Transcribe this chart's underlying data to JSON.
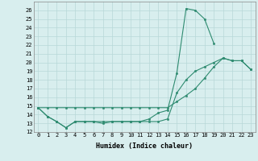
{
  "xlabel": "Humidex (Indice chaleur)",
  "x": [
    0,
    1,
    2,
    3,
    4,
    5,
    6,
    7,
    8,
    9,
    10,
    11,
    12,
    13,
    14,
    15,
    16,
    17,
    18,
    19,
    20,
    21,
    22,
    23
  ],
  "line1_y": [
    14.8,
    13.8,
    13.2,
    12.5,
    13.2,
    13.2,
    13.2,
    13.0,
    13.2,
    13.2,
    13.2,
    13.2,
    13.5,
    14.2,
    14.5,
    18.8,
    26.2,
    26.0,
    25.0,
    22.2,
    null,
    null,
    null,
    null
  ],
  "line2_y": [
    14.8,
    13.8,
    13.2,
    12.5,
    13.2,
    13.2,
    13.2,
    13.2,
    13.2,
    13.2,
    13.2,
    13.2,
    13.2,
    13.2,
    13.5,
    16.5,
    18.0,
    19.0,
    19.5,
    20.0,
    20.5,
    20.2,
    20.2,
    19.2
  ],
  "line3_y": [
    14.8,
    14.8,
    14.8,
    14.8,
    14.8,
    14.8,
    14.8,
    14.8,
    14.8,
    14.8,
    14.8,
    14.8,
    14.8,
    14.8,
    14.8,
    15.5,
    16.2,
    17.0,
    18.2,
    19.5,
    20.5,
    20.2,
    20.2,
    19.2
  ],
  "line_color": "#2e8b70",
  "bg_color": "#d8eeee",
  "grid_color": "#b8d8d8",
  "ylim": [
    12,
    27
  ],
  "xlim": [
    -0.5,
    23.5
  ],
  "yticks": [
    12,
    13,
    14,
    15,
    16,
    17,
    18,
    19,
    20,
    21,
    22,
    23,
    24,
    25,
    26
  ],
  "xticks": [
    0,
    1,
    2,
    3,
    4,
    5,
    6,
    7,
    8,
    9,
    10,
    11,
    12,
    13,
    14,
    15,
    16,
    17,
    18,
    19,
    20,
    21,
    22,
    23
  ],
  "tick_fontsize": 5.0,
  "xlabel_fontsize": 6.0
}
